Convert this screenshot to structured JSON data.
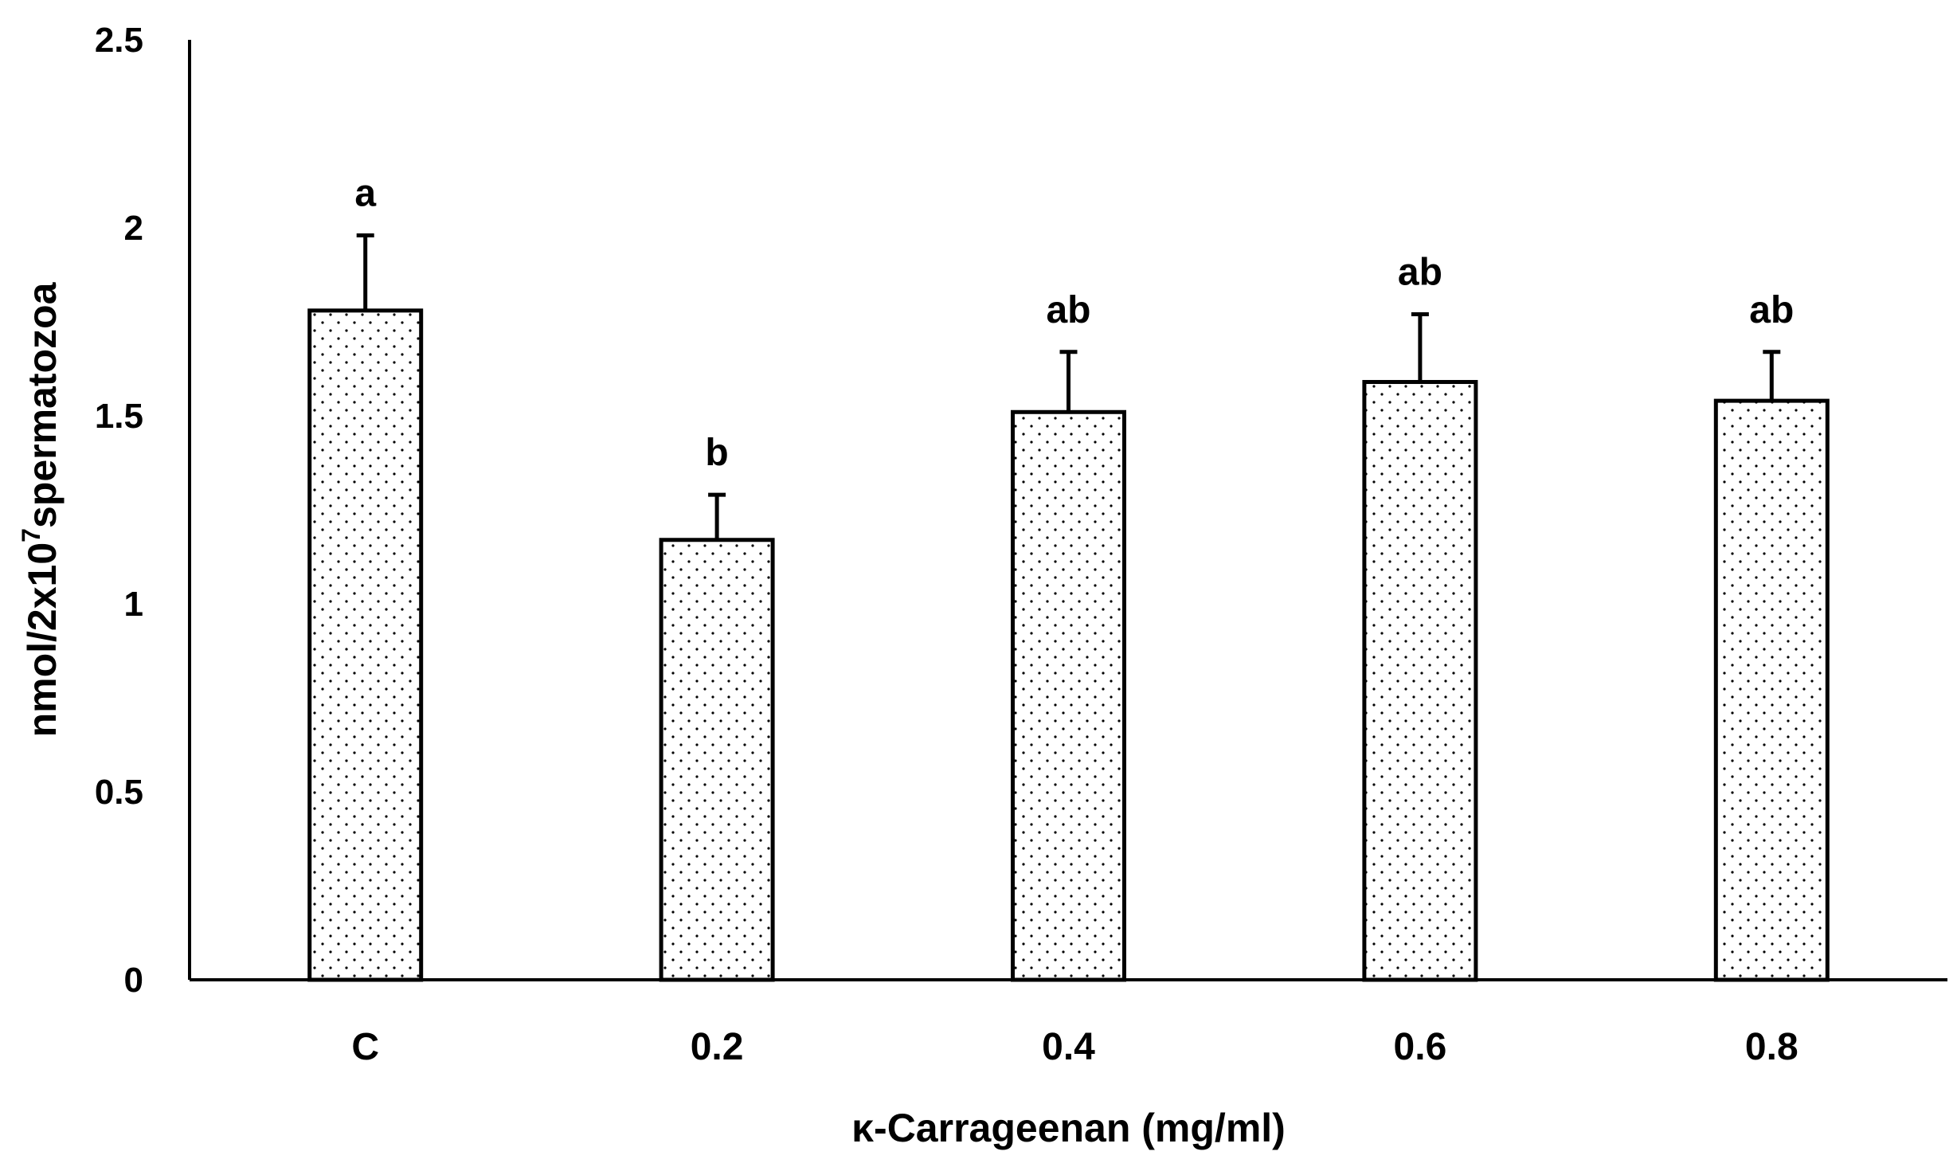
{
  "chart_data": {
    "type": "bar",
    "title": "",
    "xlabel": "κ-Carrageenan (mg/ml)",
    "ylabel": {
      "prefix": "nmol/2x10",
      "superscript": "7",
      "suffix": "spermatozoa"
    },
    "ylim": [
      0,
      2.5
    ],
    "yticks": [
      0,
      0.5,
      1,
      1.5,
      2,
      2.5
    ],
    "ytick_labels": [
      "0",
      "0.5",
      "1",
      "1.5",
      "2",
      "2.5"
    ],
    "categories": [
      "C",
      "0.2",
      "0.4",
      "0.6",
      "0.8"
    ],
    "values": [
      1.78,
      1.17,
      1.51,
      1.59,
      1.54
    ],
    "errors": [
      0.2,
      0.12,
      0.16,
      0.18,
      0.13
    ],
    "significance_labels": [
      "a",
      "b",
      "ab",
      "ab",
      "ab"
    ],
    "grid": false,
    "bar_fill": "dotted",
    "colors": {
      "bar_edge": "#000000",
      "bar_fill": "#ffffff",
      "dot": "#000000",
      "axis": "#000000"
    }
  }
}
